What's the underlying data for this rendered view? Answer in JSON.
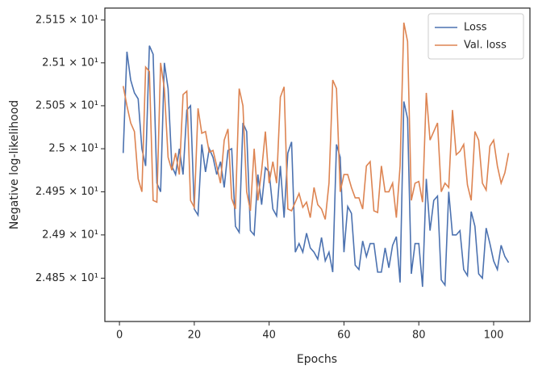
{
  "chart_data": {
    "type": "line",
    "xlabel": "Epochs",
    "ylabel": "Negative log-likelihood",
    "x": [
      1,
      2,
      3,
      4,
      5,
      6,
      7,
      8,
      9,
      10,
      11,
      12,
      13,
      14,
      15,
      16,
      17,
      18,
      19,
      20,
      21,
      22,
      23,
      24,
      25,
      26,
      27,
      28,
      29,
      30,
      31,
      32,
      33,
      34,
      35,
      36,
      37,
      38,
      39,
      40,
      41,
      42,
      43,
      44,
      45,
      46,
      47,
      48,
      49,
      50,
      51,
      52,
      53,
      54,
      55,
      56,
      57,
      58,
      59,
      60,
      61,
      62,
      63,
      64,
      65,
      66,
      67,
      68,
      69,
      70,
      71,
      72,
      73,
      74,
      75,
      76,
      77,
      78,
      79,
      80,
      81,
      82,
      83,
      84,
      85,
      86,
      87,
      88,
      89,
      90,
      91,
      92,
      93,
      94,
      95,
      96,
      97,
      98,
      99,
      100,
      101,
      102,
      103,
      104
    ],
    "series": [
      {
        "name": "Loss",
        "color": "#4c72b0",
        "values": [
          24.995,
          25.113,
          25.08,
          25.065,
          25.058,
          25.0,
          24.98,
          25.12,
          25.11,
          24.96,
          24.95,
          25.1,
          25.07,
          24.98,
          24.97,
          25.0,
          24.97,
          25.045,
          25.05,
          24.93,
          24.923,
          25.005,
          24.973,
          25.0,
          24.99,
          24.97,
          24.985,
          24.955,
          24.998,
          25.0,
          24.91,
          24.903,
          25.03,
          25.02,
          24.905,
          24.9,
          24.97,
          24.935,
          24.978,
          24.973,
          24.93,
          24.922,
          24.98,
          24.92,
          24.995,
          25.008,
          24.88,
          24.89,
          24.88,
          24.902,
          24.885,
          24.88,
          24.872,
          24.897,
          24.87,
          24.88,
          24.857,
          25.005,
          24.99,
          24.88,
          24.933,
          24.925,
          24.865,
          24.86,
          24.893,
          24.875,
          24.89,
          24.89,
          24.857,
          24.857,
          24.885,
          24.862,
          24.888,
          24.898,
          24.845,
          25.055,
          25.035,
          24.855,
          24.89,
          24.89,
          24.84,
          24.965,
          24.905,
          24.94,
          24.945,
          24.848,
          24.842,
          24.95,
          24.9,
          24.9,
          24.905,
          24.86,
          24.853,
          24.927,
          24.91,
          24.855,
          24.85,
          24.908,
          24.89,
          24.87,
          24.86,
          24.888,
          24.875,
          24.868
        ]
      },
      {
        "name": "Val. loss",
        "color": "#dd8452",
        "values": [
          25.073,
          25.05,
          25.03,
          25.02,
          24.965,
          24.95,
          25.095,
          25.09,
          24.94,
          24.938,
          25.1,
          25.07,
          24.99,
          24.975,
          24.995,
          24.97,
          25.063,
          25.067,
          24.94,
          24.932,
          25.047,
          25.018,
          25.02,
          24.996,
          24.998,
          24.98,
          24.96,
          25.01,
          25.023,
          24.942,
          24.93,
          25.07,
          25.05,
          24.95,
          24.928,
          25.0,
          24.94,
          24.975,
          25.02,
          24.96,
          24.985,
          24.96,
          25.06,
          25.072,
          24.93,
          24.928,
          24.938,
          24.948,
          24.932,
          24.938,
          24.92,
          24.955,
          24.935,
          24.93,
          24.918,
          24.96,
          25.08,
          25.07,
          24.95,
          24.97,
          24.97,
          24.955,
          24.943,
          24.943,
          24.93,
          24.98,
          24.985,
          24.928,
          24.926,
          24.98,
          24.95,
          24.95,
          24.96,
          24.92,
          24.98,
          25.147,
          25.125,
          24.94,
          24.96,
          24.962,
          24.938,
          25.065,
          25.01,
          25.02,
          25.03,
          24.95,
          24.96,
          24.955,
          25.045,
          24.993,
          24.997,
          25.005,
          24.958,
          24.94,
          25.02,
          25.01,
          24.96,
          24.952,
          25.003,
          25.01,
          24.98,
          24.96,
          24.972,
          24.995
        ]
      }
    ],
    "xlim": [
      -3.9,
      109.7
    ],
    "xticks": [
      0,
      20,
      40,
      60,
      80,
      100
    ],
    "ylim": [
      24.8,
      25.164
    ],
    "log_y": true,
    "yticks": [
      {
        "value": 24.85,
        "label": "2.485 × 10¹"
      },
      {
        "value": 24.9,
        "label": "2.49 × 10¹"
      },
      {
        "value": 24.95,
        "label": "2.495 × 10¹"
      },
      {
        "value": 25.0,
        "label": "2.5 × 10¹"
      },
      {
        "value": 25.05,
        "label": "2.505 × 10¹"
      },
      {
        "value": 25.1,
        "label": "2.51 × 10¹"
      },
      {
        "value": 25.15,
        "label": "2.515 × 10¹"
      }
    ],
    "legend": "upper right"
  }
}
